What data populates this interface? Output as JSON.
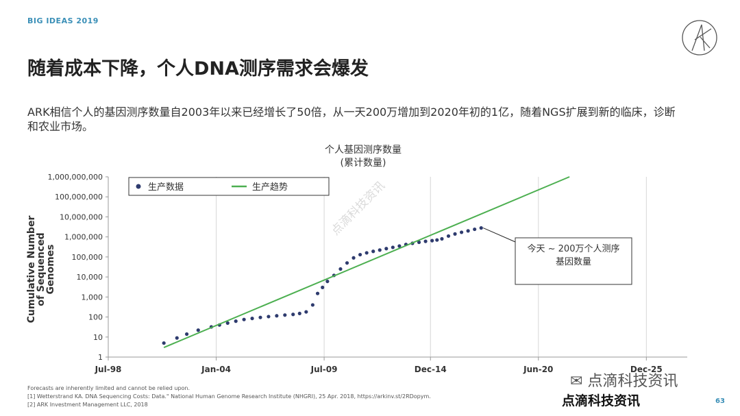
{
  "header": {
    "brand": "BIG IDEAS 2019",
    "logo_icon": "ark-logo-icon"
  },
  "title": "随着成本下降，个人DNA测序需求会爆发",
  "description": "ARK相信个人的基因测序数量自2003年以来已经增长了50倍，从一天200万增加到2020年初的1亿，随着NGS扩展到新的临床，诊断和农业市场。",
  "chart_data": {
    "type": "scatter",
    "title_lines": [
      "个人基因测序数量",
      "(累计数量)"
    ],
    "ylabel_lines": [
      "Cumulative Number",
      "of Sequenced",
      "Genomes"
    ],
    "yscale": "log",
    "ylim": [
      1,
      1000000000
    ],
    "yticks": [
      {
        "v": 1,
        "label": "1"
      },
      {
        "v": 10,
        "label": "10"
      },
      {
        "v": 100,
        "label": "100"
      },
      {
        "v": 1000,
        "label": "1,000"
      },
      {
        "v": 10000,
        "label": "10,000"
      },
      {
        "v": 100000,
        "label": "100,000"
      },
      {
        "v": 1000000,
        "label": "1,000,000"
      },
      {
        "v": 10000000,
        "label": "10,000,000"
      },
      {
        "v": 100000000,
        "label": "100,000,000"
      },
      {
        "v": 1000000000,
        "label": "1,000,000,000"
      }
    ],
    "xlim": [
      "1998-07",
      "2028-01"
    ],
    "xticks": [
      {
        "v": "1998-07",
        "label": "Jul-98"
      },
      {
        "v": "2004-01",
        "label": "Jan-04"
      },
      {
        "v": "2009-07",
        "label": "Jul-09"
      },
      {
        "v": "2014-12",
        "label": "Dec-14"
      },
      {
        "v": "2020-06",
        "label": "Jun-20"
      },
      {
        "v": "2025-12",
        "label": "Dec-25"
      }
    ],
    "legend": {
      "placement": "top-left",
      "items": [
        {
          "label": "生产数据",
          "marker": "dot",
          "color": "#2e3b6e"
        },
        {
          "label": "生产趋势",
          "marker": "line",
          "color": "#4caf50"
        }
      ]
    },
    "series": [
      {
        "name": "生产数据",
        "kind": "points",
        "color": "#2e3b6e",
        "points": [
          [
            "2001-05",
            5
          ],
          [
            "2002-01",
            9
          ],
          [
            "2002-07",
            14
          ],
          [
            "2003-02",
            22
          ],
          [
            "2003-10",
            32
          ],
          [
            "2004-03",
            40
          ],
          [
            "2004-08",
            50
          ],
          [
            "2005-01",
            62
          ],
          [
            "2005-06",
            75
          ],
          [
            "2005-11",
            85
          ],
          [
            "2006-04",
            95
          ],
          [
            "2006-09",
            105
          ],
          [
            "2007-02",
            115
          ],
          [
            "2007-07",
            125
          ],
          [
            "2007-12",
            135
          ],
          [
            "2008-04",
            150
          ],
          [
            "2008-08",
            180
          ],
          [
            "2008-12",
            400
          ],
          [
            "2009-03",
            1500
          ],
          [
            "2009-06",
            3000
          ],
          [
            "2009-09",
            6000
          ],
          [
            "2010-01",
            12000
          ],
          [
            "2010-05",
            25000
          ],
          [
            "2010-09",
            50000
          ],
          [
            "2011-01",
            90000
          ],
          [
            "2011-05",
            130000
          ],
          [
            "2011-09",
            160000
          ],
          [
            "2012-01",
            190000
          ],
          [
            "2012-05",
            220000
          ],
          [
            "2012-09",
            260000
          ],
          [
            "2013-01",
            300000
          ],
          [
            "2013-05",
            350000
          ],
          [
            "2013-09",
            420000
          ],
          [
            "2014-01",
            480000
          ],
          [
            "2014-05",
            540000
          ],
          [
            "2014-09",
            600000
          ],
          [
            "2015-01",
            650000
          ],
          [
            "2015-04",
            700000
          ],
          [
            "2015-07",
            800000
          ],
          [
            "2015-11",
            1100000
          ],
          [
            "2016-03",
            1400000
          ],
          [
            "2016-07",
            1700000
          ],
          [
            "2016-11",
            2000000
          ],
          [
            "2017-03",
            2400000
          ],
          [
            "2017-07",
            2800000
          ]
        ]
      },
      {
        "name": "生产趋势",
        "kind": "line",
        "color": "#4caf50",
        "points": [
          [
            "2001-05",
            3
          ],
          [
            "2022-01",
            1000000000
          ]
        ]
      }
    ],
    "annotation": {
      "text_lines": [
        "今天 ~ 200万个人测序",
        "基因数量"
      ],
      "point": [
        "2017-07",
        2800000
      ]
    }
  },
  "watermark": {
    "diagonal": "点滴科技资讯",
    "footer": "点滴科技资讯",
    "wechat_icon": "wechat-icon",
    "wechat_text": "点滴科技资讯"
  },
  "footnotes": {
    "line1": "Forecasts are inherently limited and cannot be relied upon.",
    "line2": "[1] Wetterstrand KA. DNA Sequencing Costs: Data.\" National Human Genome Research Institute (NHGRI), 25 Apr. 2018, https://arkinv.st/2RDopym.",
    "line3": "[2] ARK Investment Management LLC, 2018"
  },
  "page_number": "63",
  "colors": {
    "accent": "#3a8fb7",
    "dots": "#2e3b6e",
    "trend": "#4caf50"
  }
}
